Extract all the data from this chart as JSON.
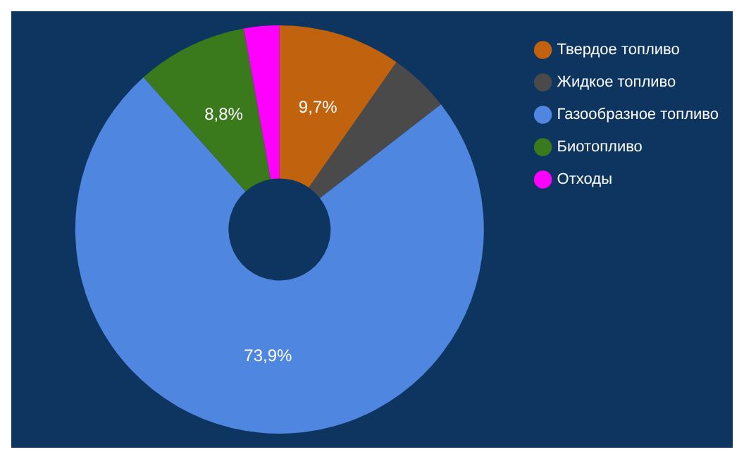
{
  "chart_data": {
    "type": "donut",
    "categories": [
      "Твердое топливо",
      "Жидкое топливо",
      "Газообразное топливо",
      "Биотопливо",
      "Отходы"
    ],
    "values": [
      9.7,
      4.8,
      73.9,
      8.8,
      2.8
    ],
    "colors": [
      "#c0620e",
      "#4a4a4a",
      "#4f86e0",
      "#3a7a1c",
      "#ff00ff"
    ],
    "value_labels": [
      "9,7%",
      null,
      "73,9%",
      "8,8%",
      null
    ],
    "legend": "top right"
  }
}
